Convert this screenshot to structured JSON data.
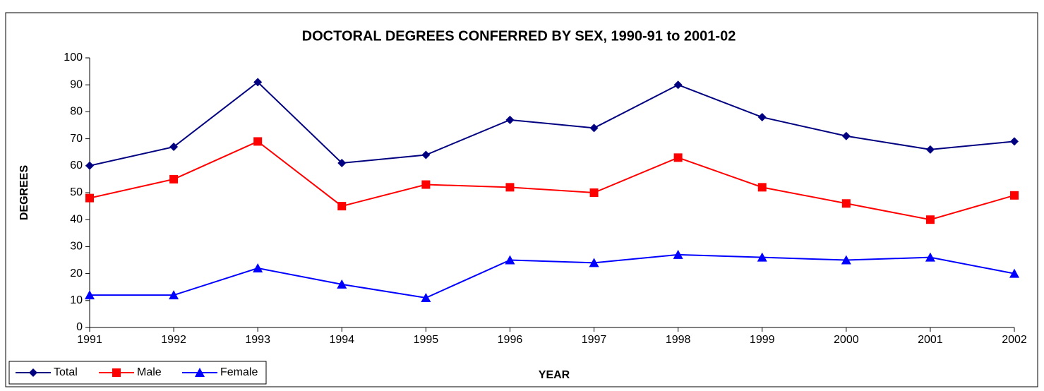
{
  "chart_data": {
    "type": "line",
    "title": "DOCTORAL DEGREES CONFERRED BY SEX, 1990-91 to 2001-02",
    "x_label": "YEAR",
    "y_label": "DEGREES",
    "categories": [
      "1991",
      "1992",
      "1993",
      "1994",
      "1995",
      "1996",
      "1997",
      "1998",
      "1999",
      "2000",
      "2001",
      "2002"
    ],
    "series": [
      {
        "name": "Total",
        "color": "#000080",
        "marker": "diamond",
        "values": [
          60,
          67,
          91,
          61,
          64,
          77,
          74,
          90,
          78,
          71,
          66,
          69
        ]
      },
      {
        "name": "Male",
        "color": "#ff0000",
        "marker": "square",
        "values": [
          48,
          55,
          69,
          45,
          53,
          52,
          50,
          63,
          52,
          46,
          40,
          49
        ]
      },
      {
        "name": "Female",
        "color": "#0000ff",
        "marker": "triangle",
        "values": [
          12,
          12,
          22,
          16,
          11,
          25,
          24,
          27,
          26,
          25,
          26,
          20
        ]
      }
    ],
    "ylim": [
      0,
      100
    ],
    "yticks": [
      0,
      10,
      20,
      30,
      40,
      50,
      60,
      70,
      80,
      90,
      100
    ],
    "grid": false,
    "legend": "bottom-left"
  }
}
